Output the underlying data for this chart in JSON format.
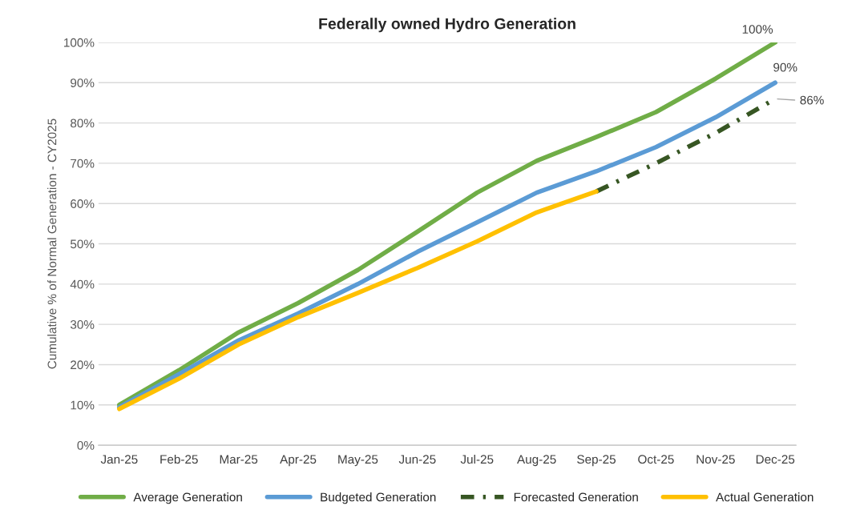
{
  "chart_data": {
    "type": "line",
    "title": "Federally owned Hydro Generation",
    "ylabel": "Cumulative % of Normal Generation - CY2025",
    "categories": [
      "Jan-25",
      "Feb-25",
      "Mar-25",
      "Apr-25",
      "May-25",
      "Jun-25",
      "Jul-25",
      "Aug-25",
      "Sep-25",
      "Oct-25",
      "Nov-25",
      "Dec-25"
    ],
    "series": [
      {
        "name": "Average Generation",
        "color": "#70ad47",
        "line_style": "solid",
        "values": [
          10,
          18.6,
          28,
          35.3,
          43.5,
          53,
          62.7,
          70.6,
          76.5,
          82.7,
          91,
          100
        ]
      },
      {
        "name": "Budgeted Generation",
        "color": "#5b9bd5",
        "line_style": "solid",
        "values": [
          9.4,
          17.6,
          26,
          32.7,
          40,
          48,
          55.3,
          62.7,
          68,
          74,
          81.4,
          90
        ]
      },
      {
        "name": "Forecasted Generation",
        "color": "#375623",
        "line_style": "dashed",
        "values": [
          null,
          null,
          null,
          null,
          null,
          null,
          null,
          null,
          63,
          70,
          77.5,
          86
        ]
      },
      {
        "name": "Actual Generation",
        "color": "#ffc000",
        "line_style": "solid",
        "values": [
          9,
          16.5,
          25,
          31.8,
          37.8,
          44,
          50.6,
          57.8,
          63,
          null,
          null,
          null
        ]
      }
    ],
    "ylim": [
      0,
      100
    ],
    "yticks": [
      {
        "value": 0,
        "label": "0%"
      },
      {
        "value": 10,
        "label": "10%"
      },
      {
        "value": 20,
        "label": "20%"
      },
      {
        "value": 30,
        "label": "30%"
      },
      {
        "value": 40,
        "label": "40%"
      },
      {
        "value": 50,
        "label": "50%"
      },
      {
        "value": 60,
        "label": "60%"
      },
      {
        "value": 70,
        "label": "70%"
      },
      {
        "value": 80,
        "label": "80%"
      },
      {
        "value": 90,
        "label": "90%"
      },
      {
        "value": 100,
        "label": "100%"
      }
    ],
    "annotations": [
      {
        "text": "100%",
        "x": "Dec-25",
        "y": 100
      },
      {
        "text": "90%",
        "x": "Dec-25",
        "y": 90
      },
      {
        "text": "86%",
        "x": "Dec-25",
        "y": 86
      }
    ],
    "grid": "y",
    "legend": "bottom",
    "marker": "none"
  }
}
